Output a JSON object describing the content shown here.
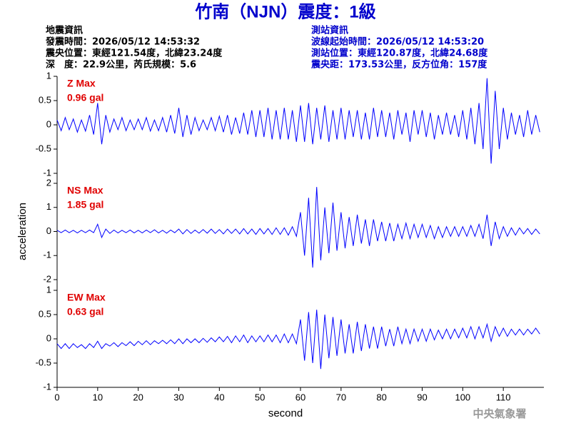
{
  "header": {
    "title": "竹南（NJN）震度：1級",
    "left": [
      "地震資訊",
      "發震時間：2026/05/12 14:53:32",
      "震央位置：東經121.54度，北緯23.24度",
      "深　度：22.9公里，芮氏規模：5.6"
    ],
    "right": [
      "測站資訊",
      "波線起始時間：2026/05/12 14:53:20",
      "測站位置：東經120.87度，北緯24.68度",
      "震央距：173.53公里，反方位角：157度"
    ],
    "watermark": "中央氣象署"
  },
  "chart_data": [
    {
      "type": "line",
      "label": "Z Max",
      "max_label": "0.96 gal",
      "color": "#0000ff",
      "xlim": [
        0,
        120
      ],
      "ylim": [
        -1,
        1
      ],
      "yticks": [
        -1,
        -0.5,
        0,
        0.5,
        1
      ],
      "x": [
        0,
        1,
        2,
        3,
        4,
        5,
        6,
        7,
        8,
        9,
        10,
        11,
        12,
        13,
        14,
        15,
        16,
        17,
        18,
        19,
        20,
        21,
        22,
        23,
        24,
        25,
        26,
        27,
        28,
        29,
        30,
        31,
        32,
        33,
        34,
        35,
        36,
        37,
        38,
        39,
        40,
        41,
        42,
        43,
        44,
        45,
        46,
        47,
        48,
        49,
        50,
        51,
        52,
        53,
        54,
        55,
        56,
        57,
        58,
        59,
        60,
        61,
        62,
        63,
        64,
        65,
        66,
        67,
        68,
        69,
        70,
        71,
        72,
        73,
        74,
        75,
        76,
        77,
        78,
        79,
        80,
        81,
        82,
        83,
        84,
        85,
        86,
        87,
        88,
        89,
        90,
        91,
        92,
        93,
        94,
        95,
        96,
        97,
        98,
        99,
        100,
        101,
        102,
        103,
        104,
        105,
        106,
        107,
        108,
        109,
        110,
        111,
        112,
        113,
        114,
        115,
        116,
        117,
        118,
        119
      ],
      "values": [
        0.1,
        -0.12,
        0.15,
        -0.1,
        0.12,
        -0.15,
        0.1,
        -0.13,
        0.2,
        -0.2,
        0.45,
        -0.4,
        0.2,
        -0.15,
        0.12,
        -0.1,
        0.15,
        -0.12,
        0.1,
        -0.1,
        0.12,
        -0.1,
        0.15,
        -0.13,
        0.1,
        -0.12,
        0.15,
        -0.15,
        0.2,
        -0.18,
        0.35,
        -0.25,
        0.2,
        -0.2,
        0.15,
        -0.12,
        0.1,
        -0.1,
        0.15,
        -0.12,
        0.18,
        -0.15,
        0.2,
        -0.2,
        0.15,
        -0.18,
        0.25,
        -0.2,
        0.3,
        -0.25,
        0.3,
        -0.25,
        0.35,
        -0.3,
        0.3,
        -0.3,
        0.35,
        -0.3,
        0.3,
        -0.35,
        0.4,
        -0.35,
        0.45,
        -0.4,
        0.35,
        -0.3,
        0.4,
        -0.35,
        0.3,
        -0.3,
        0.35,
        -0.3,
        0.3,
        -0.25,
        0.3,
        -0.3,
        0.25,
        -0.3,
        0.35,
        -0.25,
        0.3,
        -0.25,
        0.25,
        -0.3,
        0.3,
        -0.2,
        0.25,
        -0.35,
        0.3,
        -0.2,
        0.3,
        -0.25,
        0.25,
        -0.3,
        0.2,
        -0.2,
        0.25,
        -0.2,
        0.2,
        -0.25,
        0.3,
        -0.3,
        0.35,
        -0.4,
        0.45,
        -0.5,
        0.96,
        -0.8,
        0.7,
        -0.5,
        0.35,
        -0.3,
        0.25,
        -0.2,
        0.2,
        -0.25,
        0.3,
        -0.2,
        0.2,
        -0.15
      ]
    },
    {
      "type": "line",
      "label": "NS Max",
      "max_label": "1.85 gal",
      "ylabel": "acceleration",
      "color": "#0000ff",
      "xlim": [
        0,
        120
      ],
      "ylim": [
        -2,
        2
      ],
      "yticks": [
        -2,
        -1,
        0,
        1,
        2
      ],
      "x": [
        0,
        1,
        2,
        3,
        4,
        5,
        6,
        7,
        8,
        9,
        10,
        11,
        12,
        13,
        14,
        15,
        16,
        17,
        18,
        19,
        20,
        21,
        22,
        23,
        24,
        25,
        26,
        27,
        28,
        29,
        30,
        31,
        32,
        33,
        34,
        35,
        36,
        37,
        38,
        39,
        40,
        41,
        42,
        43,
        44,
        45,
        46,
        47,
        48,
        49,
        50,
        51,
        52,
        53,
        54,
        55,
        56,
        57,
        58,
        59,
        60,
        61,
        62,
        63,
        64,
        65,
        66,
        67,
        68,
        69,
        70,
        71,
        72,
        73,
        74,
        75,
        76,
        77,
        78,
        79,
        80,
        81,
        82,
        83,
        84,
        85,
        86,
        87,
        88,
        89,
        90,
        91,
        92,
        93,
        94,
        95,
        96,
        97,
        98,
        99,
        100,
        101,
        102,
        103,
        104,
        105,
        106,
        107,
        108,
        109,
        110,
        111,
        112,
        113,
        114,
        115,
        116,
        117,
        118,
        119
      ],
      "values": [
        0.05,
        -0.05,
        0.06,
        -0.05,
        0.05,
        -0.06,
        0.05,
        -0.05,
        0.06,
        -0.05,
        0.3,
        -0.25,
        0.1,
        -0.08,
        0.06,
        -0.06,
        0.05,
        -0.05,
        0.06,
        -0.06,
        0.05,
        -0.06,
        0.06,
        -0.05,
        0.07,
        -0.06,
        0.05,
        -0.07,
        0.06,
        -0.05,
        0.1,
        -0.1,
        0.08,
        -0.08,
        0.06,
        -0.07,
        0.08,
        -0.07,
        0.1,
        -0.08,
        0.08,
        -0.1,
        0.1,
        -0.08,
        0.1,
        -0.1,
        0.12,
        -0.1,
        0.1,
        -0.12,
        0.12,
        -0.1,
        0.12,
        -0.12,
        0.15,
        -0.12,
        0.15,
        -0.15,
        0.2,
        -0.2,
        0.8,
        -1.0,
        1.4,
        -1.5,
        1.85,
        -1.2,
        1.0,
        -0.9,
        1.2,
        -0.8,
        0.8,
        -0.7,
        0.6,
        -0.6,
        0.7,
        -0.5,
        0.5,
        -0.6,
        0.5,
        -0.4,
        0.4,
        -0.4,
        0.35,
        -0.4,
        0.3,
        -0.3,
        0.35,
        -0.3,
        0.3,
        -0.25,
        0.3,
        -0.25,
        0.25,
        -0.3,
        0.2,
        -0.25,
        0.2,
        -0.2,
        0.2,
        -0.2,
        0.2,
        -0.2,
        0.25,
        -0.2,
        0.3,
        -0.3,
        0.7,
        -0.6,
        0.4,
        -0.3,
        0.2,
        -0.2,
        0.15,
        -0.15,
        0.15,
        -0.1,
        0.12,
        -0.12,
        0.1,
        -0.1
      ]
    },
    {
      "type": "line",
      "label": "EW Max",
      "max_label": "0.63 gal",
      "xlabel": "second",
      "color": "#0000ff",
      "xlim": [
        0,
        120
      ],
      "ylim": [
        -1,
        1
      ],
      "yticks": [
        -1,
        -0.5,
        0,
        0.5,
        1
      ],
      "xticks": [
        0,
        10,
        20,
        30,
        40,
        50,
        60,
        70,
        80,
        90,
        100,
        110
      ],
      "x": [
        0,
        1,
        2,
        3,
        4,
        5,
        6,
        7,
        8,
        9,
        10,
        11,
        12,
        13,
        14,
        15,
        16,
        17,
        18,
        19,
        20,
        21,
        22,
        23,
        24,
        25,
        26,
        27,
        28,
        29,
        30,
        31,
        32,
        33,
        34,
        35,
        36,
        37,
        38,
        39,
        40,
        41,
        42,
        43,
        44,
        45,
        46,
        47,
        48,
        49,
        50,
        51,
        52,
        53,
        54,
        55,
        56,
        57,
        58,
        59,
        60,
        61,
        62,
        63,
        64,
        65,
        66,
        67,
        68,
        69,
        70,
        71,
        72,
        73,
        74,
        75,
        76,
        77,
        78,
        79,
        80,
        81,
        82,
        83,
        84,
        85,
        86,
        87,
        88,
        89,
        90,
        91,
        92,
        93,
        94,
        95,
        96,
        97,
        98,
        99,
        100,
        101,
        102,
        103,
        104,
        105,
        106,
        107,
        108,
        109,
        110,
        111,
        112,
        113,
        114,
        115,
        116,
        117,
        118,
        119
      ],
      "values": [
        -0.1,
        -0.2,
        -0.1,
        -0.2,
        -0.1,
        -0.18,
        -0.12,
        -0.2,
        -0.1,
        -0.18,
        -0.05,
        -0.2,
        -0.1,
        -0.15,
        -0.08,
        -0.16,
        -0.08,
        -0.14,
        -0.06,
        -0.14,
        -0.05,
        -0.12,
        -0.04,
        -0.12,
        -0.04,
        -0.1,
        -0.03,
        -0.1,
        -0.02,
        -0.1,
        0.0,
        -0.1,
        0.0,
        -0.08,
        0.0,
        -0.08,
        0.01,
        -0.07,
        0.02,
        -0.06,
        0.04,
        -0.06,
        0.05,
        -0.08,
        0.06,
        -0.06,
        0.08,
        -0.08,
        0.06,
        -0.06,
        0.06,
        -0.06,
        0.08,
        -0.06,
        0.08,
        -0.08,
        0.1,
        -0.08,
        0.1,
        -0.1,
        0.4,
        -0.45,
        0.55,
        -0.5,
        0.6,
        -0.62,
        0.5,
        -0.4,
        0.45,
        -0.35,
        0.4,
        -0.3,
        0.3,
        -0.3,
        0.35,
        -0.25,
        0.3,
        -0.2,
        0.25,
        -0.2,
        0.25,
        -0.15,
        0.2,
        -0.15,
        0.25,
        -0.1,
        0.2,
        -0.1,
        0.2,
        -0.05,
        0.2,
        -0.05,
        0.2,
        -0.02,
        0.18,
        0.0,
        0.2,
        0.0,
        0.2,
        0.02,
        0.22,
        0.02,
        0.25,
        0.0,
        0.25,
        0.02,
        0.3,
        -0.05,
        0.25,
        0.05,
        0.22,
        0.05,
        0.2,
        0.08,
        0.2,
        0.08,
        0.2,
        0.1,
        0.22,
        0.1
      ]
    }
  ]
}
